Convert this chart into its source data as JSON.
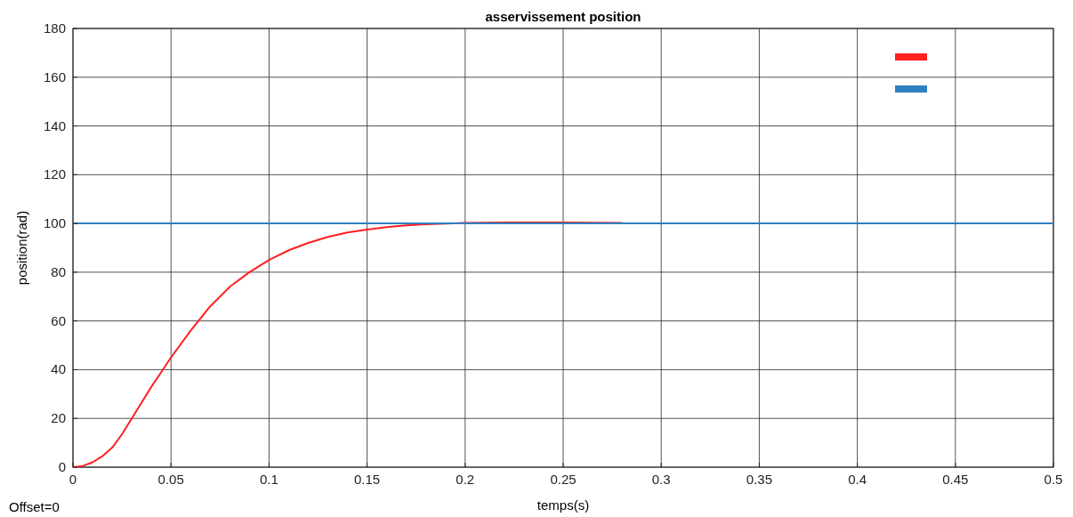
{
  "chart_data": {
    "type": "line",
    "title": "asservissement position",
    "xlabel": "temps(s)",
    "ylabel": "position(rad)",
    "annotations": [
      "Offset=0"
    ],
    "xlim": [
      0,
      0.5
    ],
    "xticks": [
      0,
      0.05,
      0.1,
      0.15,
      0.2,
      0.25,
      0.3,
      0.35,
      0.4,
      0.45,
      0.5
    ],
    "ylim": [
      0,
      180
    ],
    "yticks": [
      0,
      20,
      40,
      60,
      80,
      100,
      120,
      140,
      160,
      180
    ],
    "grid": true,
    "line_style": "solid",
    "series": [
      {
        "color": "#ff1f1f",
        "x": [
          0,
          0.005,
          0.01,
          0.015,
          0.02,
          0.025,
          0.03,
          0.035,
          0.04,
          0.045,
          0.05,
          0.06,
          0.07,
          0.08,
          0.09,
          0.1,
          0.11,
          0.12,
          0.13,
          0.14,
          0.15,
          0.16,
          0.17,
          0.18,
          0.2,
          0.22,
          0.25,
          0.28
        ],
        "values": [
          0,
          0.5,
          2,
          4.5,
          8,
          13.5,
          20,
          26.5,
          33,
          39,
          45,
          56,
          66,
          74,
          80,
          85,
          89,
          92,
          94.5,
          96.3,
          97.5,
          98.5,
          99.2,
          99.7,
          100.2,
          100.4,
          100.4,
          100.2
        ]
      },
      {
        "color": "#2f7fc1",
        "x": [
          0,
          0.5
        ],
        "values": [
          100,
          100
        ]
      }
    ]
  }
}
